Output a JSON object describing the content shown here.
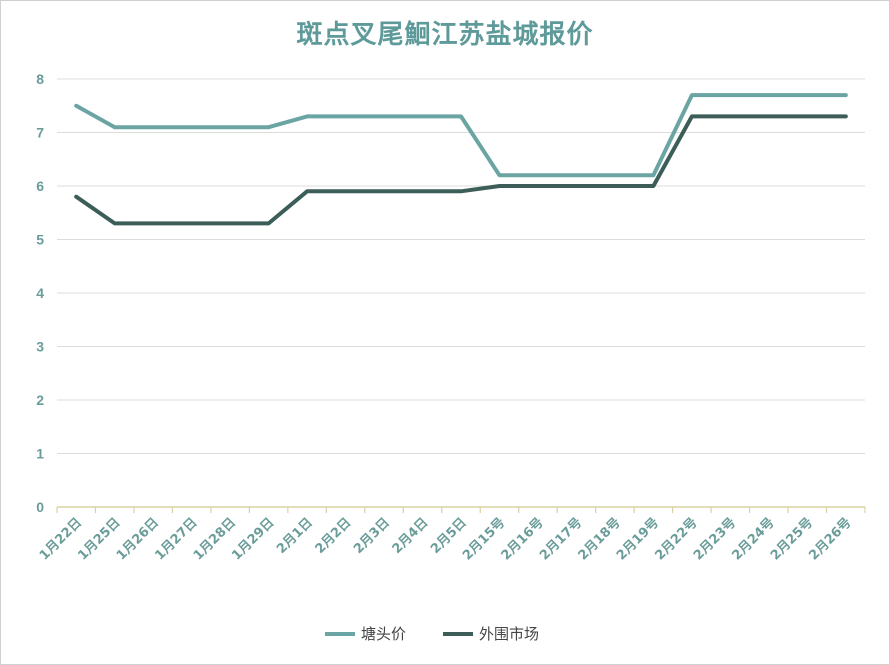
{
  "chart_data": {
    "type": "line",
    "title": "斑点叉尾鮰江苏盐城报价",
    "categories": [
      "1月22日",
      "1月25日",
      "1月26日",
      "1月27日",
      "1月28日",
      "1月29日",
      "2月1日",
      "2月2日",
      "2月3日",
      "2月4日",
      "2月5日",
      "2月15号",
      "2月16号",
      "2月17号",
      "2月18号",
      "2月19号",
      "2月22号",
      "2月23号",
      "2月24号",
      "2月25号",
      "2月26号"
    ],
    "series": [
      {
        "name": "塘头价",
        "color": "#6aa5a3",
        "values": [
          7.5,
          7.1,
          7.1,
          7.1,
          7.1,
          7.1,
          7.3,
          7.3,
          7.3,
          7.3,
          7.3,
          6.2,
          6.2,
          6.2,
          6.2,
          6.2,
          7.7,
          7.7,
          7.7,
          7.7,
          7.7
        ]
      },
      {
        "name": "外围市场",
        "color": "#3d5e58",
        "values": [
          5.8,
          5.3,
          5.3,
          5.3,
          5.3,
          5.3,
          5.9,
          5.9,
          5.9,
          5.9,
          5.9,
          6.0,
          6.0,
          6.0,
          6.0,
          6.0,
          7.3,
          7.3,
          7.3,
          7.3,
          7.3
        ]
      }
    ],
    "ylim": [
      0,
      8
    ],
    "yticks": [
      "0",
      "1",
      "2",
      "3",
      "4",
      "5",
      "6",
      "7",
      "8"
    ],
    "grid": true,
    "legend": "bottom",
    "xlabel": "",
    "ylabel": ""
  }
}
